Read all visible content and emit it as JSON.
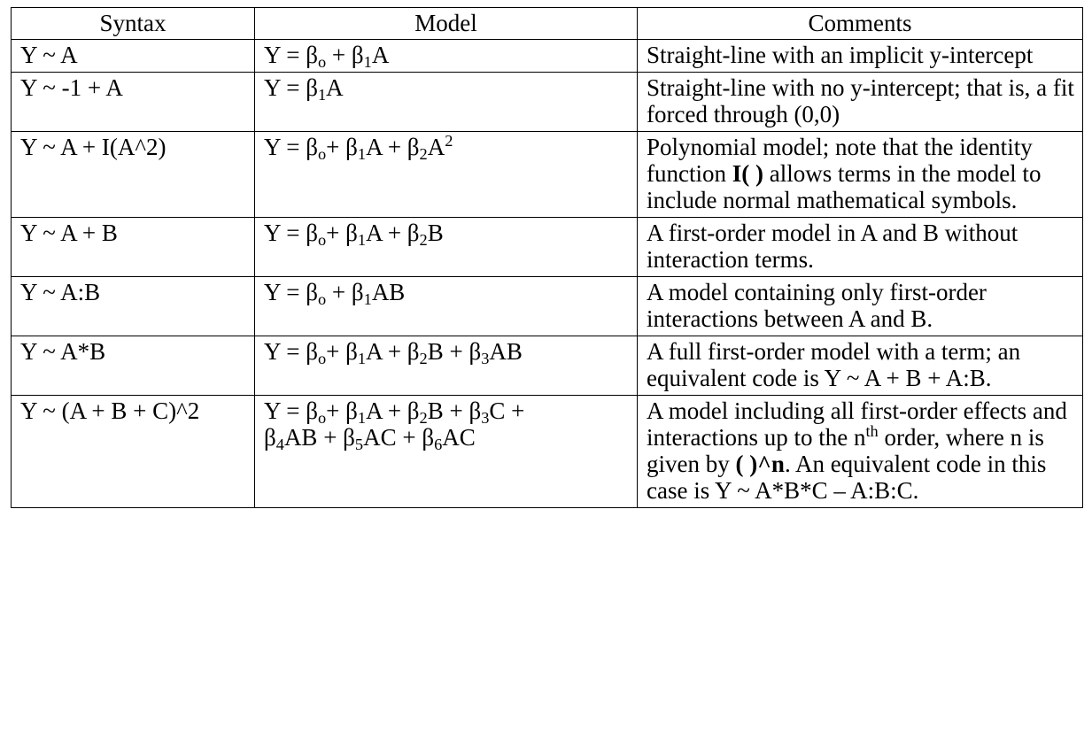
{
  "headers": [
    "Syntax",
    "Model",
    "Comments"
  ],
  "rows": [
    {
      "syntax": "Y ~ A",
      "model": "Y = β<sub>o</sub> + β<sub>1</sub>A",
      "comment": "Straight-line with an implicit y-intercept"
    },
    {
      "syntax": "Y ~ -1 + A",
      "model": "Y = β<sub>1</sub>A",
      "comment": "Straight-line with no y-intercept; that is, a fit forced through (0,0)"
    },
    {
      "syntax": "Y ~ A + I(A^2)",
      "model": "Y = β<sub>o</sub>+ β<sub>1</sub>A + β<sub>2</sub>A<sup>2</sup>",
      "comment": "Polynomial model; note that the identity function <b>I( )</b> allows terms in the model to include normal mathematical symbols."
    },
    {
      "syntax": "Y ~ A + B",
      "model": "Y = β<sub>o</sub>+ β<sub>1</sub>A + β<sub>2</sub>B",
      "comment": "A first-order model in A and B without interaction terms."
    },
    {
      "syntax": "Y ~ A:B",
      "model": "Y = β<sub>o</sub> + β<sub>1</sub>AB",
      "comment": "A model containing only first-order interactions between A and B."
    },
    {
      "syntax": "Y ~ A*B",
      "model": "Y = β<sub>o</sub>+ β<sub>1</sub>A + β<sub>2</sub>B + β<sub>3</sub>AB",
      "comment": "A full first-order model with a term; an equivalent code is Y ~ A + B + A:B."
    },
    {
      "syntax": "Y ~ (A + B + C)^2",
      "model": "Y = β<sub>o</sub>+ β<sub>1</sub>A + β<sub>2</sub>B + β<sub>3</sub>C + <br>β<sub>4</sub>AB + β<sub>5</sub>AC + β<sub>6</sub>AC",
      "comment": "A model including all first-order effects and interactions up to the n<sup>th</sup> order, where n is given by <b>( )^n</b>. An equivalent code in this case is Y ~ A*B*C – A:B:C."
    }
  ]
}
